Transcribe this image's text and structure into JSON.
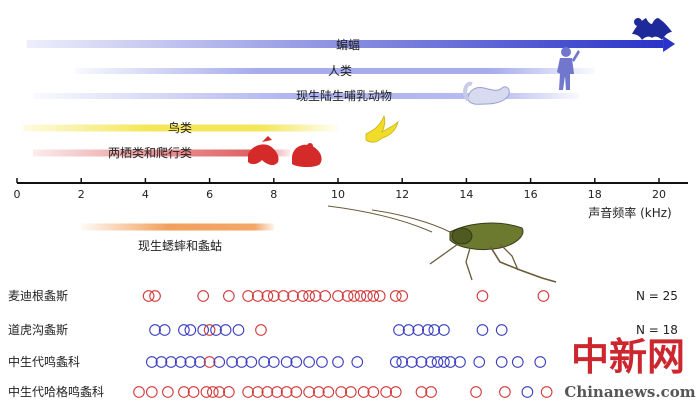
{
  "chart_data": {
    "type": "scatter",
    "xlabel": "声音频率 (kHz)",
    "xlim": [
      0,
      20.5
    ],
    "x_ticks": [
      0,
      2,
      4,
      6,
      8,
      10,
      12,
      14,
      16,
      18,
      20
    ],
    "colors": {
      "bat": "#2a33c8",
      "human": "#8890e6",
      "mammal": "#8890e6",
      "bird": "#f2e23a",
      "amphibian": "#d9464a",
      "cricket": "#f09040",
      "red_circle": "#d23a3a",
      "blue_circle": "#3a3fc0"
    },
    "hearing_ranges": [
      {
        "name": "蝙蝠",
        "x_start": 0.3,
        "x_end": 20.5,
        "color": "#2a33c8",
        "icon": "bat-silhouette-icon"
      },
      {
        "name": "人类",
        "x_start": 1.8,
        "x_end": 18,
        "color": "#8890e6",
        "icon": "human-silhouette-icon"
      },
      {
        "name": "现生陆生哺乳动物",
        "x_start": 0.5,
        "x_end": 17.5,
        "color": "#8890e6",
        "icon": "squirrel-silhouette-icon"
      },
      {
        "name": "鸟类",
        "x_start": 0.2,
        "x_end": 10,
        "color": "#f2e23a",
        "icon": "bird-silhouette-icon"
      },
      {
        "name": "两栖类和爬行类",
        "x_start": 0.5,
        "x_end": 8.5,
        "color": "#d9464a",
        "icon": "frog-lizard-silhouette-icon"
      },
      {
        "name": "现生蟋蟀和螽蛄",
        "x_start": 2,
        "x_end": 8,
        "color": "#f09040",
        "icon": "katydid-illustration-icon"
      }
    ],
    "series": [
      {
        "name": "麦迪根螽斯",
        "n_label": "N = 25",
        "points": [
          {
            "x": 4.1,
            "c": "red"
          },
          {
            "x": 4.3,
            "c": "red"
          },
          {
            "x": 5.8,
            "c": "red"
          },
          {
            "x": 6.6,
            "c": "red"
          },
          {
            "x": 7.2,
            "c": "red"
          },
          {
            "x": 7.5,
            "c": "red"
          },
          {
            "x": 7.8,
            "c": "red"
          },
          {
            "x": 8.0,
            "c": "red"
          },
          {
            "x": 8.3,
            "c": "red"
          },
          {
            "x": 8.6,
            "c": "red"
          },
          {
            "x": 8.9,
            "c": "red"
          },
          {
            "x": 9.1,
            "c": "red"
          },
          {
            "x": 9.3,
            "c": "red"
          },
          {
            "x": 9.6,
            "c": "red"
          },
          {
            "x": 10.0,
            "c": "red"
          },
          {
            "x": 10.3,
            "c": "red"
          },
          {
            "x": 10.5,
            "c": "red"
          },
          {
            "x": 10.7,
            "c": "red"
          },
          {
            "x": 10.9,
            "c": "red"
          },
          {
            "x": 11.1,
            "c": "red"
          },
          {
            "x": 11.3,
            "c": "red"
          },
          {
            "x": 11.8,
            "c": "red"
          },
          {
            "x": 12.0,
            "c": "red"
          },
          {
            "x": 14.5,
            "c": "red"
          },
          {
            "x": 16.4,
            "c": "red"
          }
        ]
      },
      {
        "name": "道虎沟螽斯",
        "n_label": "N = 18",
        "points": [
          {
            "x": 4.3,
            "c": "blue"
          },
          {
            "x": 4.6,
            "c": "blue"
          },
          {
            "x": 5.2,
            "c": "blue"
          },
          {
            "x": 5.4,
            "c": "blue"
          },
          {
            "x": 5.8,
            "c": "blue"
          },
          {
            "x": 6.0,
            "c": "red"
          },
          {
            "x": 6.2,
            "c": "blue"
          },
          {
            "x": 6.5,
            "c": "blue"
          },
          {
            "x": 6.9,
            "c": "blue"
          },
          {
            "x": 7.6,
            "c": "red"
          },
          {
            "x": 11.9,
            "c": "blue"
          },
          {
            "x": 12.2,
            "c": "blue"
          },
          {
            "x": 12.5,
            "c": "blue"
          },
          {
            "x": 12.8,
            "c": "blue"
          },
          {
            "x": 13.0,
            "c": "blue"
          },
          {
            "x": 13.3,
            "c": "blue"
          },
          {
            "x": 14.5,
            "c": "blue"
          },
          {
            "x": 15.1,
            "c": "blue"
          }
        ]
      },
      {
        "name": "中生代鸣螽科",
        "n_label": "",
        "points": [
          {
            "x": 4.2,
            "c": "blue"
          },
          {
            "x": 4.5,
            "c": "blue"
          },
          {
            "x": 4.8,
            "c": "blue"
          },
          {
            "x": 5.1,
            "c": "blue"
          },
          {
            "x": 5.4,
            "c": "blue"
          },
          {
            "x": 5.7,
            "c": "blue"
          },
          {
            "x": 6.0,
            "c": "red"
          },
          {
            "x": 6.3,
            "c": "blue"
          },
          {
            "x": 6.7,
            "c": "blue"
          },
          {
            "x": 7.0,
            "c": "blue"
          },
          {
            "x": 7.3,
            "c": "blue"
          },
          {
            "x": 7.7,
            "c": "blue"
          },
          {
            "x": 8.0,
            "c": "blue"
          },
          {
            "x": 8.4,
            "c": "blue"
          },
          {
            "x": 8.7,
            "c": "blue"
          },
          {
            "x": 9.1,
            "c": "blue"
          },
          {
            "x": 9.5,
            "c": "blue"
          },
          {
            "x": 10.0,
            "c": "blue"
          },
          {
            "x": 10.6,
            "c": "blue"
          },
          {
            "x": 11.8,
            "c": "blue"
          },
          {
            "x": 12.0,
            "c": "blue"
          },
          {
            "x": 12.3,
            "c": "blue"
          },
          {
            "x": 12.6,
            "c": "blue"
          },
          {
            "x": 12.9,
            "c": "blue"
          },
          {
            "x": 13.1,
            "c": "blue"
          },
          {
            "x": 13.3,
            "c": "blue"
          },
          {
            "x": 13.5,
            "c": "blue"
          },
          {
            "x": 13.8,
            "c": "blue"
          },
          {
            "x": 14.4,
            "c": "blue"
          },
          {
            "x": 15.1,
            "c": "blue"
          },
          {
            "x": 15.6,
            "c": "blue"
          },
          {
            "x": 16.3,
            "c": "blue"
          }
        ]
      },
      {
        "name": "中生代哈格鸣螽科",
        "n_label": "",
        "points": [
          {
            "x": 3.8,
            "c": "red"
          },
          {
            "x": 4.2,
            "c": "red"
          },
          {
            "x": 4.7,
            "c": "red"
          },
          {
            "x": 5.2,
            "c": "red"
          },
          {
            "x": 5.5,
            "c": "red"
          },
          {
            "x": 5.9,
            "c": "red"
          },
          {
            "x": 6.1,
            "c": "red"
          },
          {
            "x": 6.3,
            "c": "red"
          },
          {
            "x": 6.6,
            "c": "red"
          },
          {
            "x": 7.2,
            "c": "red"
          },
          {
            "x": 7.5,
            "c": "red"
          },
          {
            "x": 7.8,
            "c": "red"
          },
          {
            "x": 8.1,
            "c": "red"
          },
          {
            "x": 8.4,
            "c": "red"
          },
          {
            "x": 8.7,
            "c": "red"
          },
          {
            "x": 9.1,
            "c": "red"
          },
          {
            "x": 9.4,
            "c": "red"
          },
          {
            "x": 9.7,
            "c": "red"
          },
          {
            "x": 10.1,
            "c": "red"
          },
          {
            "x": 10.4,
            "c": "red"
          },
          {
            "x": 10.8,
            "c": "red"
          },
          {
            "x": 11.1,
            "c": "red"
          },
          {
            "x": 11.5,
            "c": "red"
          },
          {
            "x": 11.8,
            "c": "red"
          },
          {
            "x": 12.6,
            "c": "red"
          },
          {
            "x": 12.9,
            "c": "red"
          },
          {
            "x": 14.3,
            "c": "red"
          },
          {
            "x": 15.2,
            "c": "red"
          },
          {
            "x": 15.9,
            "c": "blue"
          },
          {
            "x": 16.5,
            "c": "red"
          }
        ]
      }
    ]
  },
  "watermark": {
    "brand_cn": "中新网",
    "brand_en": "Chinanews.com"
  }
}
